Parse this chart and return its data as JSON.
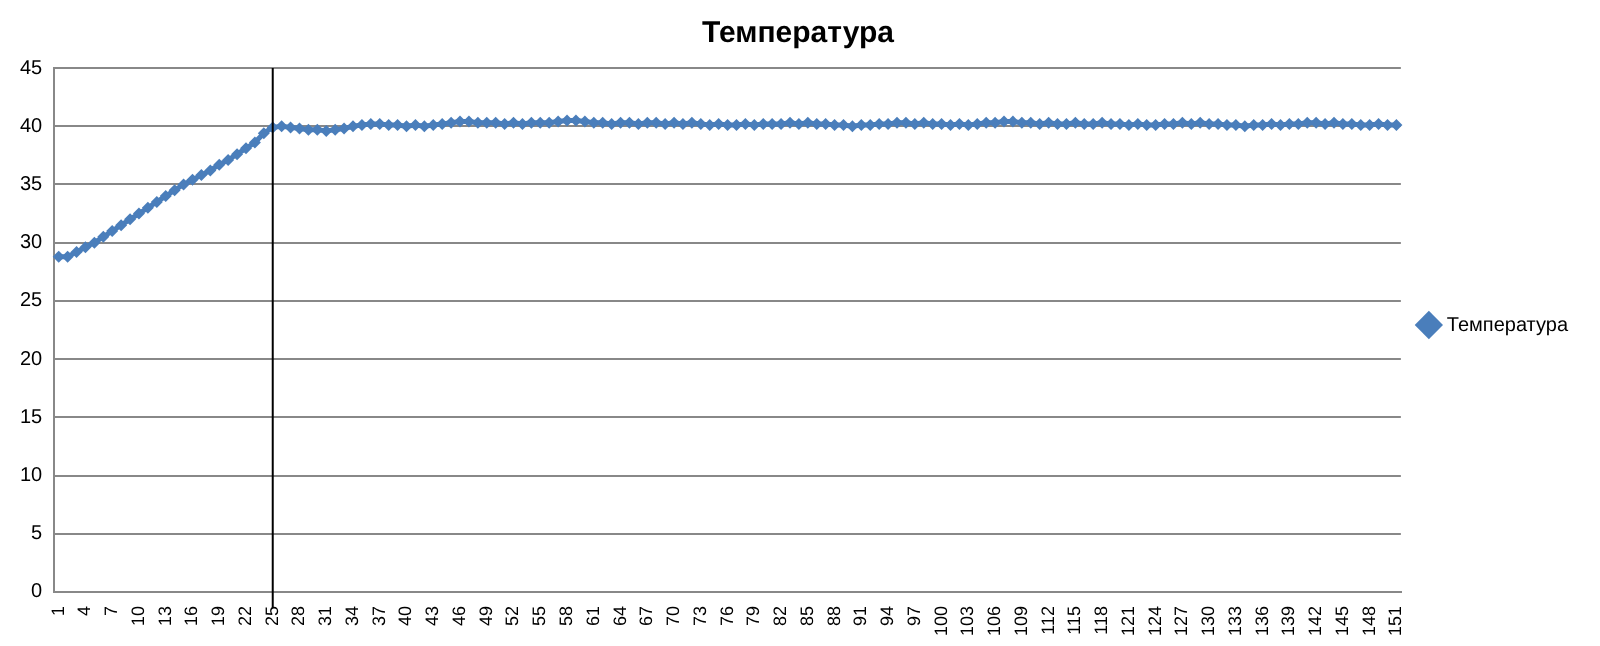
{
  "chart_data": {
    "type": "line",
    "title": "Температура",
    "categories": [
      "1",
      null,
      null,
      "4",
      null,
      null,
      "7",
      null,
      null,
      "10",
      null,
      null,
      "13",
      null,
      null,
      "16",
      null,
      null,
      "19",
      null,
      null,
      "22",
      null,
      null,
      "25",
      null,
      null,
      "28",
      null,
      null,
      "31",
      null,
      null,
      "34",
      null,
      null,
      "37",
      null,
      null,
      "40",
      null,
      null,
      "43",
      null,
      null,
      "46",
      null,
      null,
      "49",
      null,
      null,
      "52",
      null,
      null,
      "55",
      null,
      null,
      "58",
      null,
      null,
      "61",
      null,
      null,
      "64",
      null,
      null,
      "67",
      null,
      null,
      "70",
      null,
      null,
      "73",
      null,
      null,
      "76",
      null,
      null,
      "79",
      null,
      null,
      "82",
      null,
      null,
      "85",
      null,
      null,
      "88",
      null,
      null,
      "91",
      null,
      null,
      "94",
      null,
      null,
      "97",
      null,
      null,
      "100",
      null,
      null,
      "103",
      null,
      null,
      "106",
      null,
      null,
      "109",
      null,
      null,
      "112",
      null,
      null,
      "115",
      null,
      null,
      "118",
      null,
      null,
      "121",
      null,
      null,
      "124",
      null,
      null,
      "127",
      null,
      null,
      "130",
      null,
      null,
      "133",
      null,
      null,
      "136",
      null,
      null,
      "139",
      null,
      null,
      "142",
      null,
      null,
      "145",
      null,
      null,
      "148",
      null,
      null,
      "151"
    ],
    "series": [
      {
        "name": "Температура",
        "color": "#4a7ebb",
        "values": [
          28.8,
          28.8,
          29.2,
          29.6,
          30.0,
          30.5,
          31.0,
          31.5,
          32.0,
          32.5,
          33.0,
          33.5,
          34.0,
          34.5,
          35.0,
          35.4,
          35.8,
          36.2,
          36.7,
          37.1,
          37.6,
          38.1,
          38.6,
          39.4,
          39.9,
          40.0,
          39.9,
          39.8,
          39.7,
          39.7,
          39.6,
          39.7,
          39.8,
          40.0,
          40.1,
          40.2,
          40.2,
          40.1,
          40.1,
          40.0,
          40.1,
          40.0,
          40.1,
          40.2,
          40.3,
          40.4,
          40.4,
          40.3,
          40.3,
          40.3,
          40.2,
          40.3,
          40.2,
          40.3,
          40.3,
          40.3,
          40.4,
          40.5,
          40.5,
          40.4,
          40.3,
          40.3,
          40.2,
          40.3,
          40.3,
          40.2,
          40.3,
          40.3,
          40.2,
          40.3,
          40.2,
          40.3,
          40.2,
          40.1,
          40.2,
          40.1,
          40.1,
          40.2,
          40.1,
          40.2,
          40.2,
          40.2,
          40.3,
          40.2,
          40.3,
          40.2,
          40.2,
          40.1,
          40.1,
          40.0,
          40.1,
          40.1,
          40.2,
          40.2,
          40.3,
          40.3,
          40.2,
          40.3,
          40.2,
          40.2,
          40.1,
          40.2,
          40.1,
          40.2,
          40.3,
          40.3,
          40.4,
          40.4,
          40.3,
          40.3,
          40.2,
          40.3,
          40.2,
          40.2,
          40.3,
          40.2,
          40.2,
          40.3,
          40.2,
          40.2,
          40.1,
          40.2,
          40.1,
          40.1,
          40.2,
          40.2,
          40.3,
          40.2,
          40.3,
          40.2,
          40.2,
          40.1,
          40.1,
          40.0,
          40.1,
          40.1,
          40.2,
          40.1,
          40.2,
          40.2,
          40.3,
          40.3,
          40.2,
          40.3,
          40.2,
          40.2,
          40.1,
          40.1,
          40.2,
          40.1,
          40.1
        ]
      }
    ],
    "ylim": [
      0,
      45
    ],
    "yticks": [
      0,
      5,
      10,
      15,
      20,
      25,
      30,
      35,
      40,
      45
    ],
    "ref_lines": [
      {
        "axis": "x",
        "value": "25",
        "color": "#000000"
      }
    ],
    "grid": "y",
    "legend": "right",
    "marker": "diamond",
    "line_style": "solid"
  }
}
